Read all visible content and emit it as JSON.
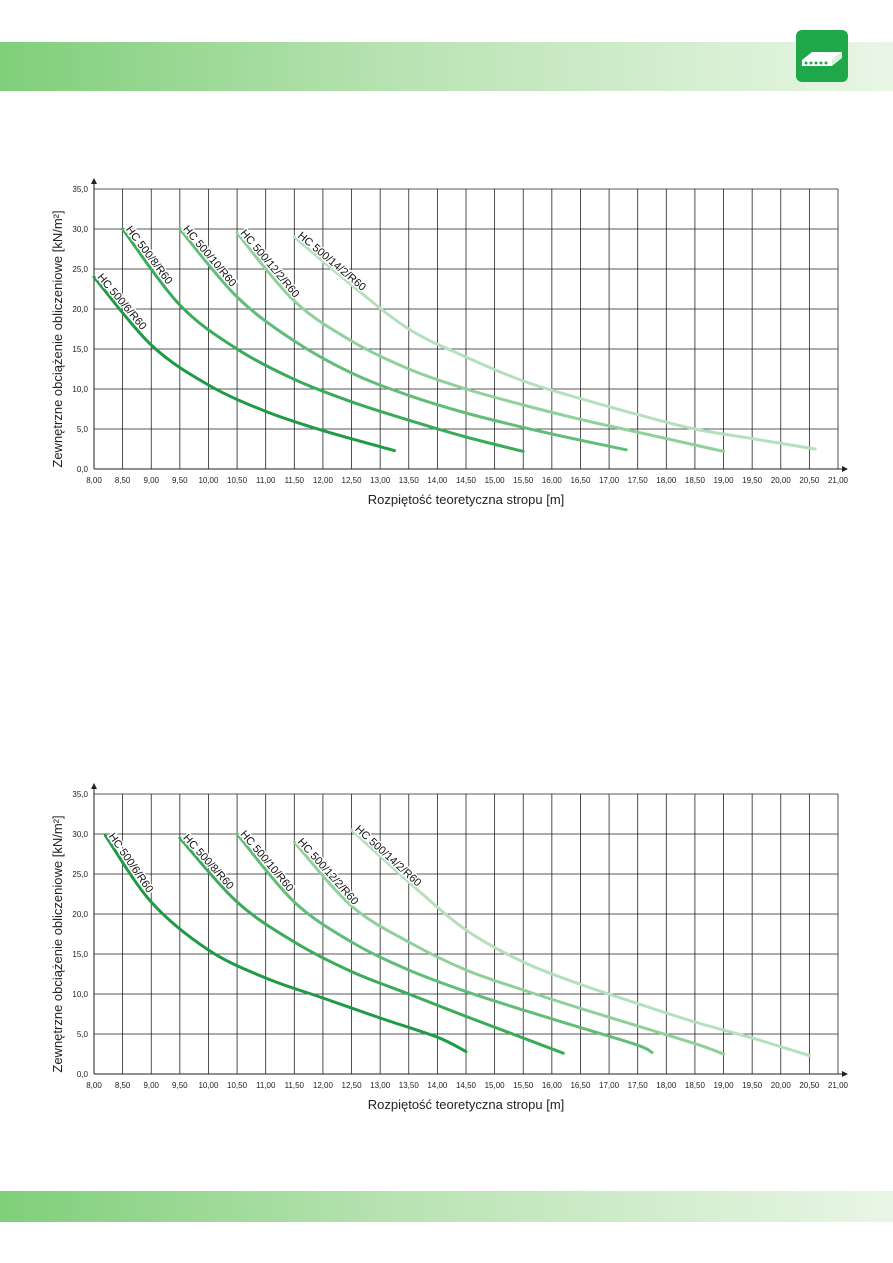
{
  "colors": {
    "band": "#8fd48a",
    "logo_bg": "#1fa84a",
    "curve_shades": [
      "#1f9b46",
      "#3aab59",
      "#62bd78",
      "#8fd09c",
      "#b4e0bd"
    ]
  },
  "logo": {
    "icon": "hollow-core-slab-icon"
  },
  "chart_data": [
    {
      "type": "line",
      "title": "",
      "xlabel": "Rozpiętość teoretyczna stropu [m]",
      "ylabel": "Zewnętrzne obciążenie obliczeniowe [kN/m²]",
      "xlim": [
        8.0,
        21.0
      ],
      "ylim": [
        0,
        35
      ],
      "grid": true,
      "x_ticks": [
        "8,00",
        "8,50",
        "9,00",
        "9,50",
        "10,00",
        "10,50",
        "11,00",
        "11,50",
        "12,00",
        "12,50",
        "13,00",
        "13,50",
        "14,00",
        "14,50",
        "15,00",
        "15,50",
        "16,00",
        "16,50",
        "17,00",
        "17,50",
        "18,00",
        "18,50",
        "19,00",
        "19,50",
        "20,00",
        "20,50",
        "21,00"
      ],
      "y_ticks": [
        "0,0",
        "5,0",
        "10,0",
        "15,0",
        "20,0",
        "25,0",
        "30,0",
        "35,0"
      ],
      "series": [
        {
          "name": "HC 500/6/R60",
          "x": [
            8.0,
            9.0,
            10.0,
            11.0,
            12.0,
            13.25
          ],
          "y": [
            24.0,
            15.5,
            10.5,
            7.2,
            4.8,
            2.3
          ]
        },
        {
          "name": "HC 500/8/R60",
          "x": [
            8.5,
            9.5,
            10.5,
            11.5,
            12.5,
            13.5,
            14.5,
            15.5
          ],
          "y": [
            30.0,
            20.5,
            15.0,
            11.2,
            8.4,
            6.1,
            4.0,
            2.2
          ]
        },
        {
          "name": "HC 500/10/R60",
          "x": [
            9.5,
            10.5,
            11.5,
            12.5,
            13.5,
            14.5,
            15.5,
            16.5,
            17.3
          ],
          "y": [
            30.0,
            21.5,
            16.0,
            12.0,
            9.2,
            7.0,
            5.2,
            3.6,
            2.4
          ]
        },
        {
          "name": "HC 500/12/2/R60",
          "x": [
            10.5,
            11.5,
            12.5,
            13.5,
            14.5,
            15.5,
            16.5,
            17.5,
            18.5,
            19.0
          ],
          "y": [
            29.5,
            21.0,
            16.0,
            12.5,
            10.0,
            8.0,
            6.2,
            4.6,
            3.0,
            2.2
          ]
        },
        {
          "name": "HC 500/14/2/R60",
          "x": [
            11.5,
            12.5,
            13.5,
            14.5,
            15.5,
            16.5,
            17.5,
            18.5,
            19.5,
            20.6
          ],
          "y": [
            29.0,
            23.0,
            17.5,
            14.0,
            11.0,
            8.8,
            6.8,
            5.0,
            3.8,
            2.5
          ]
        }
      ]
    },
    {
      "type": "line",
      "title": "",
      "xlabel": "Rozpiętość teoretyczna stropu [m]",
      "ylabel": "Zewnętrzne obciążenie obliczeniowe [kN/m²]",
      "xlim": [
        8.0,
        21.0
      ],
      "ylim": [
        0,
        35
      ],
      "grid": true,
      "x_ticks": [
        "8,00",
        "8,50",
        "9,00",
        "9,50",
        "10,00",
        "10,50",
        "11,00",
        "11,50",
        "12,00",
        "12,50",
        "13,00",
        "13,50",
        "14,00",
        "14,50",
        "15,00",
        "15,50",
        "16,00",
        "16,50",
        "17,00",
        "17,50",
        "18,00",
        "18,50",
        "19,00",
        "19,50",
        "20,00",
        "20,50",
        "21,00"
      ],
      "y_ticks": [
        "0,0",
        "5,0",
        "10,0",
        "15,0",
        "20,0",
        "25,0",
        "30,0",
        "35,0"
      ],
      "series": [
        {
          "name": "HC 500/6/R60",
          "x": [
            8.2,
            9.0,
            10.0,
            11.0,
            12.0,
            13.0,
            14.0,
            14.5
          ],
          "y": [
            29.8,
            21.5,
            15.5,
            12.0,
            9.5,
            7.0,
            4.6,
            2.8
          ]
        },
        {
          "name": "HC 500/8/R60",
          "x": [
            9.5,
            10.5,
            11.5,
            12.5,
            13.5,
            14.5,
            15.5,
            16.2
          ],
          "y": [
            29.5,
            21.5,
            16.5,
            12.8,
            10.0,
            7.2,
            4.5,
            2.6
          ]
        },
        {
          "name": "HC 500/10/R60",
          "x": [
            10.5,
            11.5,
            12.5,
            13.5,
            14.5,
            15.5,
            16.5,
            17.5,
            17.75
          ],
          "y": [
            30.0,
            21.5,
            16.5,
            13.0,
            10.3,
            8.0,
            5.8,
            3.6,
            2.7
          ]
        },
        {
          "name": "HC 500/12/2/R60",
          "x": [
            11.5,
            12.5,
            13.5,
            14.5,
            15.5,
            16.5,
            17.5,
            18.5,
            19.0
          ],
          "y": [
            29.0,
            21.0,
            16.5,
            13.0,
            10.5,
            8.2,
            6.0,
            3.8,
            2.5
          ]
        },
        {
          "name": "HC 500/14/2/R60",
          "x": [
            12.5,
            13.5,
            14.5,
            15.5,
            16.5,
            17.5,
            18.5,
            19.5,
            20.5
          ],
          "y": [
            30.5,
            24.0,
            18.0,
            14.0,
            11.2,
            8.8,
            6.5,
            4.5,
            2.3
          ]
        }
      ]
    }
  ]
}
